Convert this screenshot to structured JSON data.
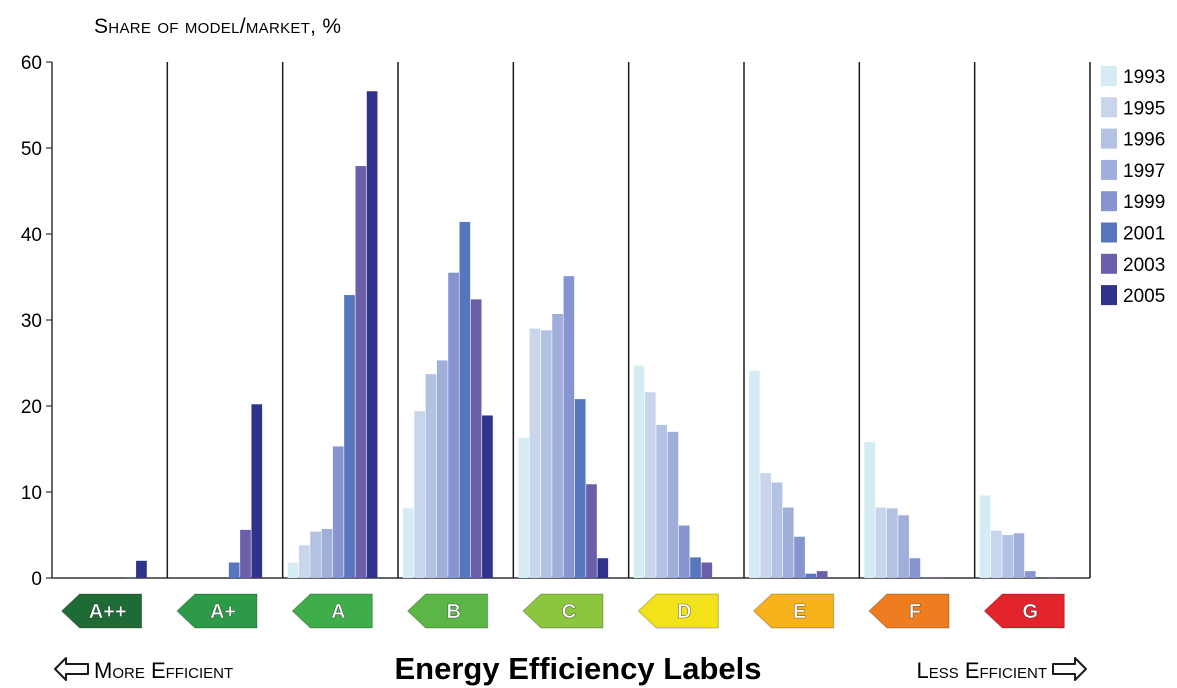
{
  "chart_data": {
    "type": "bar",
    "ylabel": "Share of model/market, %",
    "xlabel": "Energy Efficiency Labels",
    "more_efficient": "More Efficient",
    "less_efficient": "Less Efficient",
    "ylim": [
      0,
      60
    ],
    "yticks": [
      0,
      10,
      20,
      30,
      40,
      50,
      60
    ],
    "categories": [
      "A++",
      "A+",
      "A",
      "B",
      "C",
      "D",
      "E",
      "F",
      "G"
    ],
    "category_colors": [
      "#1e6b35",
      "#2d9a47",
      "#3fae4a",
      "#5cb547",
      "#8cc63f",
      "#f2e21a",
      "#f8b21c",
      "#ef7d1f",
      "#e3242b"
    ],
    "legend_position": "right",
    "series": [
      {
        "name": "1993",
        "color": "#d6ecf5",
        "values": [
          0,
          0,
          1.8,
          8.1,
          16.3,
          24.7,
          24.1,
          15.8,
          9.6
        ]
      },
      {
        "name": "1995",
        "color": "#c8d5eb",
        "values": [
          0,
          0,
          3.8,
          19.4,
          29.0,
          21.6,
          12.2,
          8.2,
          5.5
        ]
      },
      {
        "name": "1996",
        "color": "#b3c2e3",
        "values": [
          0,
          0,
          5.4,
          23.7,
          28.8,
          17.8,
          11.1,
          8.1,
          5.0
        ]
      },
      {
        "name": "1997",
        "color": "#a0afd9",
        "values": [
          0,
          0,
          5.7,
          25.3,
          30.7,
          17.0,
          8.2,
          7.3,
          5.2
        ]
      },
      {
        "name": "1999",
        "color": "#8695cf",
        "values": [
          0,
          0,
          15.3,
          35.5,
          35.1,
          6.1,
          4.8,
          2.3,
          0.8
        ]
      },
      {
        "name": "2001",
        "color": "#5876be",
        "values": [
          0,
          1.8,
          32.9,
          41.4,
          20.8,
          2.4,
          0.5,
          0.1,
          0
        ]
      },
      {
        "name": "2003",
        "color": "#6a5fa8",
        "values": [
          0.1,
          5.6,
          47.9,
          32.4,
          10.9,
          1.8,
          0.8,
          0.1,
          0.1
        ]
      },
      {
        "name": "2005",
        "color": "#2f348a",
        "values": [
          2.0,
          20.2,
          56.6,
          18.9,
          2.3,
          0,
          0,
          0,
          0
        ]
      }
    ]
  }
}
